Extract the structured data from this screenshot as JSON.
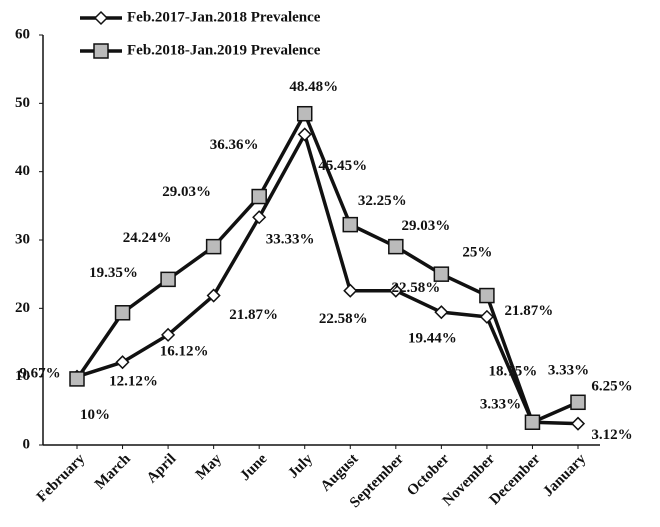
{
  "chart_data": {
    "type": "line",
    "categories": [
      "February",
      "March",
      "April",
      "May",
      "June",
      "July",
      "August",
      "September",
      "October",
      "November",
      "December",
      "January"
    ],
    "series": [
      {
        "name": "Feb.2017-Jan.2018 Prevalence",
        "color": "#111111",
        "marker": "diamond",
        "values": [
          10,
          12.12,
          16.12,
          21.87,
          33.33,
          45.45,
          22.58,
          22.58,
          19.44,
          18.75,
          3.33,
          3.12
        ],
        "value_labels": [
          "10%",
          "12.12%",
          "16.12%",
          "21.87%",
          "33.33%",
          "45.45%",
          "22.58%",
          "22.58%",
          "19.44%",
          "18.75%",
          "3.33%",
          "3.12%"
        ]
      },
      {
        "name": "Feb.2018-Jan.2019 Prevalence",
        "color": "#111111",
        "marker": "square",
        "values": [
          9.67,
          19.35,
          24.24,
          29.03,
          36.36,
          48.48,
          32.25,
          29.03,
          25,
          21.87,
          3.33,
          6.25
        ],
        "value_labels": [
          "9.67%",
          "19.35%",
          "24.24%",
          "29.03%",
          "36.36%",
          "48.48%",
          "32.25%",
          "29.03%",
          "25%",
          "21.87%",
          "3.33%",
          "6.25%"
        ]
      }
    ],
    "ylim": [
      0,
      60
    ],
    "yticks": [
      0,
      10,
      20,
      30,
      40,
      50,
      60
    ],
    "grid": false,
    "legend": "top-left"
  }
}
